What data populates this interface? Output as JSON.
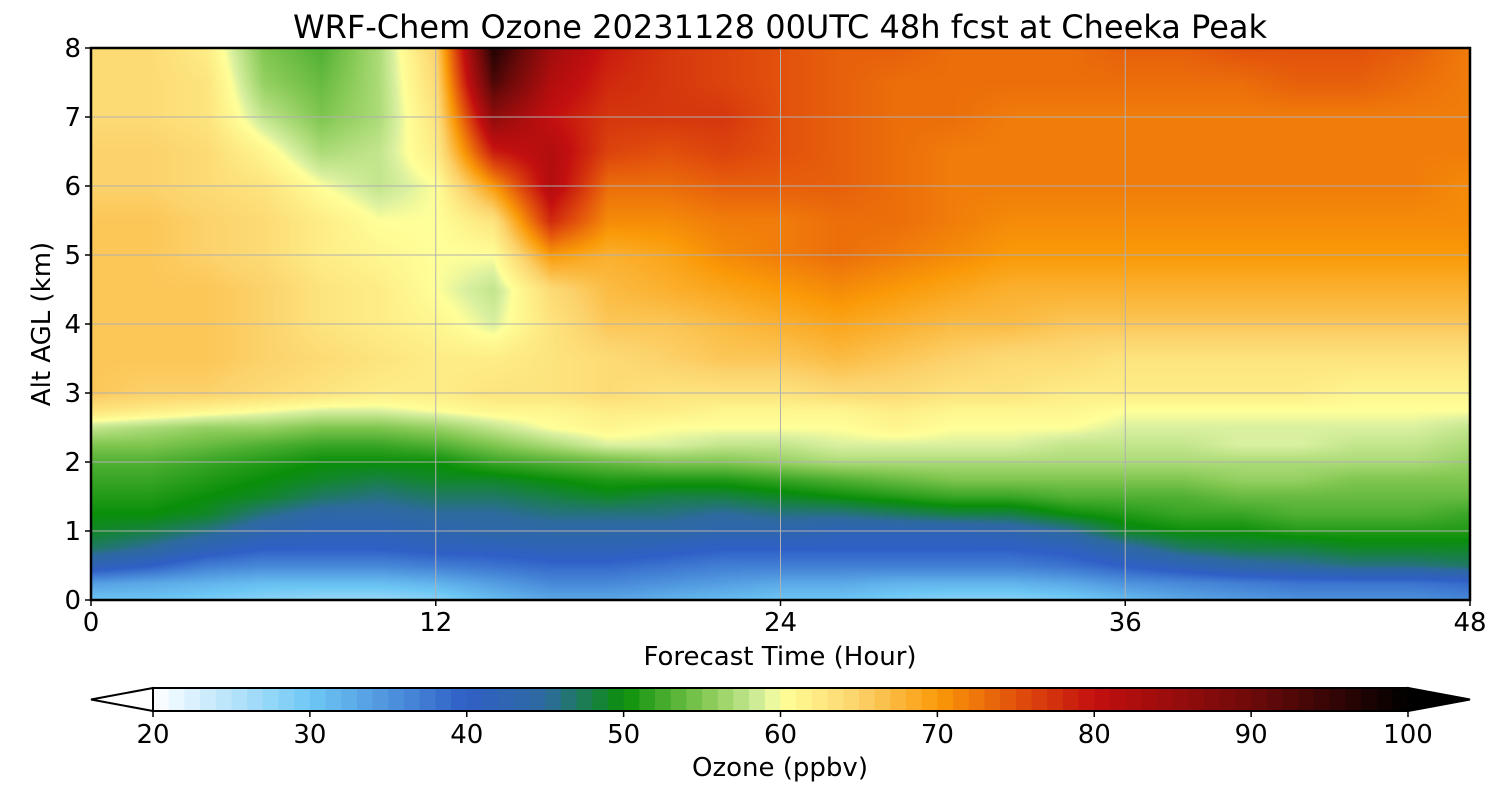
{
  "chart_data": {
    "type": "heatmap",
    "title": "WRF-Chem Ozone  20231128 00UTC 48h fcst at Cheeka Peak",
    "xlabel": "Forecast Time (Hour)",
    "ylabel": "Alt AGL (km)",
    "xlim": [
      0,
      48
    ],
    "ylim": [
      0,
      8
    ],
    "xticks": [
      0,
      12,
      24,
      36,
      48
    ],
    "yticks": [
      0,
      1,
      2,
      3,
      4,
      5,
      6,
      7,
      8
    ],
    "grid": true,
    "z_x": [
      0,
      2,
      4,
      6,
      8,
      10,
      12,
      14,
      16,
      18,
      20,
      22,
      24,
      26,
      28,
      30,
      32,
      34,
      36,
      38,
      40,
      42,
      44,
      46,
      48
    ],
    "z_y": [
      0,
      0.25,
      0.5,
      0.75,
      1,
      1.25,
      1.5,
      1.75,
      2,
      2.25,
      2.5,
      2.75,
      3,
      3.5,
      4,
      4.5,
      5,
      5.5,
      6,
      6.5,
      7,
      7.5,
      8
    ],
    "z_values": [
      [
        30,
        30,
        29,
        28,
        27,
        27,
        28,
        31,
        33,
        33,
        32,
        31,
        30,
        30,
        29,
        28,
        28,
        29,
        31,
        33,
        34,
        35,
        35,
        35,
        36
      ],
      [
        34,
        33,
        32,
        31,
        31,
        31,
        32,
        34,
        36,
        36,
        35,
        34,
        33,
        33,
        32,
        32,
        32,
        33,
        35,
        36,
        37,
        38,
        38,
        38,
        39
      ],
      [
        42,
        40,
        37,
        36,
        36,
        36,
        37,
        38,
        39,
        39,
        38,
        37,
        37,
        37,
        37,
        37,
        37,
        38,
        40,
        42,
        44,
        45,
        46,
        46,
        47
      ],
      [
        47,
        45,
        42,
        40,
        40,
        40,
        41,
        41,
        42,
        42,
        41,
        40,
        40,
        40,
        40,
        40,
        40,
        41,
        44,
        47,
        48,
        48,
        49,
        49,
        49
      ],
      [
        49,
        48,
        46,
        43,
        42,
        42,
        43,
        44,
        44,
        44,
        44,
        43,
        43,
        42,
        42,
        42,
        43,
        45,
        49,
        50,
        50,
        51,
        51,
        51,
        51
      ],
      [
        50,
        50,
        49,
        46,
        44,
        44,
        45,
        45,
        46,
        46,
        46,
        45,
        46,
        46,
        47,
        48,
        48,
        50,
        51,
        52,
        52,
        53,
        53,
        53,
        52
      ],
      [
        51,
        51,
        50,
        49,
        47,
        46,
        47,
        47,
        48,
        49,
        48,
        48,
        49,
        50,
        51,
        52,
        52,
        53,
        53,
        53,
        54,
        54,
        54,
        54,
        54
      ],
      [
        52,
        52,
        51,
        50,
        49,
        48,
        49,
        49,
        50,
        51,
        51,
        51,
        52,
        53,
        54,
        55,
        55,
        55,
        55,
        55,
        56,
        56,
        55,
        55,
        55
      ],
      [
        53,
        53,
        52,
        51,
        50,
        50,
        50,
        52,
        53,
        54,
        55,
        55,
        56,
        57,
        57,
        57,
        57,
        57,
        57,
        57,
        57,
        57,
        57,
        57,
        56
      ],
      [
        55,
        55,
        54,
        53,
        52,
        52,
        53,
        55,
        57,
        59,
        59,
        58,
        58,
        59,
        59,
        59,
        59,
        58,
        58,
        58,
        59,
        59,
        58,
        58,
        57
      ],
      [
        58,
        57,
        56,
        56,
        55,
        55,
        56,
        58,
        60,
        61,
        60,
        60,
        60,
        60,
        61,
        60,
        60,
        60,
        59,
        59,
        59,
        59,
        59,
        59,
        58
      ],
      [
        63,
        62,
        61,
        60,
        59,
        59,
        60,
        61,
        61,
        62,
        62,
        61,
        61,
        61,
        62,
        61,
        61,
        61,
        60,
        60,
        60,
        60,
        60,
        60,
        60
      ],
      [
        66,
        65,
        65,
        64,
        63,
        62,
        62,
        63,
        63,
        64,
        63,
        63,
        63,
        64,
        64,
        63,
        63,
        62,
        62,
        62,
        62,
        62,
        61,
        61,
        61
      ],
      [
        66,
        66,
        66,
        65,
        64,
        63,
        62,
        62,
        63,
        64,
        65,
        66,
        66,
        67,
        66,
        65,
        64,
        64,
        63,
        63,
        63,
        63,
        63,
        63,
        63
      ],
      [
        66,
        66,
        66,
        65,
        63,
        62,
        61,
        59,
        63,
        66,
        66,
        67,
        68,
        69,
        68,
        67,
        67,
        66,
        66,
        66,
        66,
        66,
        66,
        66,
        66
      ],
      [
        66,
        66,
        66,
        65,
        63,
        62,
        60,
        58,
        64,
        67,
        68,
        69,
        70,
        71,
        70,
        69,
        68,
        68,
        68,
        68,
        68,
        68,
        68,
        68,
        68
      ],
      [
        66,
        66,
        65,
        64,
        62,
        61,
        60,
        60,
        70,
        68,
        69,
        71,
        72,
        73,
        72,
        71,
        70,
        70,
        70,
        70,
        70,
        70,
        70,
        70,
        70
      ],
      [
        66,
        66,
        65,
        64,
        62,
        60,
        60,
        63,
        78,
        71,
        71,
        72,
        72,
        73,
        73,
        72,
        71,
        71,
        71,
        71,
        71,
        71,
        71,
        71,
        71
      ],
      [
        65,
        65,
        64,
        63,
        60,
        58,
        60,
        70,
        82,
        73,
        73,
        74,
        74,
        74,
        73,
        72,
        72,
        72,
        72,
        72,
        72,
        72,
        72,
        72,
        71
      ],
      [
        65,
        65,
        64,
        61,
        57,
        58,
        62,
        79,
        82,
        76,
        75,
        76,
        75,
        74,
        73,
        72,
        72,
        72,
        72,
        72,
        72,
        72,
        72,
        72,
        72
      ],
      [
        64,
        64,
        63,
        58,
        55,
        57,
        63,
        86,
        80,
        77,
        77,
        77,
        75,
        74,
        73,
        73,
        72,
        72,
        72,
        72,
        72,
        72,
        72,
        72,
        72
      ],
      [
        64,
        64,
        63,
        56,
        54,
        57,
        64,
        93,
        82,
        78,
        77,
        76,
        75,
        74,
        73,
        73,
        73,
        73,
        73,
        73,
        73,
        74,
        74,
        73,
        72
      ],
      [
        64,
        64,
        62,
        55,
        53,
        57,
        65,
        97,
        84,
        79,
        77,
        76,
        75,
        74,
        74,
        73,
        73,
        73,
        74,
        74,
        75,
        75,
        75,
        74,
        72
      ]
    ],
    "colorbar": {
      "label": "Ozone  (ppbv)",
      "min": 20,
      "max": 100,
      "ticks": [
        20,
        30,
        40,
        50,
        60,
        70,
        80,
        90,
        100
      ],
      "extend": "both",
      "color_stops": [
        {
          "value": 20,
          "color": "#ffffff"
        },
        {
          "value": 30,
          "color": "#6ec8f5"
        },
        {
          "value": 40,
          "color": "#2f5fc6"
        },
        {
          "value": 45,
          "color": "#2e6aa0"
        },
        {
          "value": 50,
          "color": "#0a8f0a"
        },
        {
          "value": 55,
          "color": "#7fc64f"
        },
        {
          "value": 59,
          "color": "#d9f0a0"
        },
        {
          "value": 60,
          "color": "#ffff99"
        },
        {
          "value": 65,
          "color": "#fcd26b"
        },
        {
          "value": 70,
          "color": "#fa9a08"
        },
        {
          "value": 75,
          "color": "#e2510c"
        },
        {
          "value": 80,
          "color": "#c30f0f"
        },
        {
          "value": 90,
          "color": "#6e0a0a"
        },
        {
          "value": 100,
          "color": "#000000"
        }
      ]
    }
  }
}
